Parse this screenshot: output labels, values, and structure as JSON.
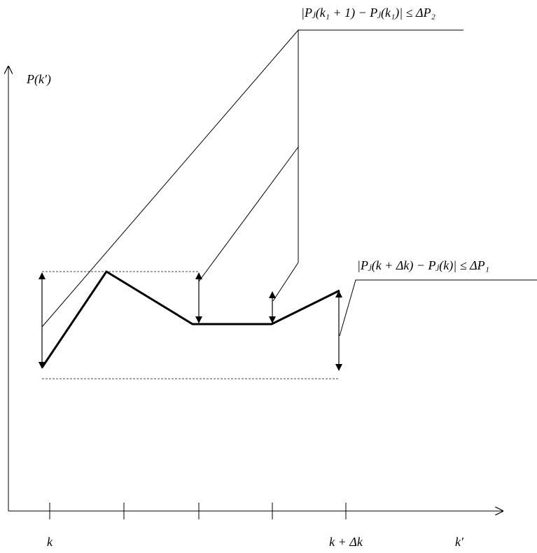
{
  "axes": {
    "y_label": "P(k′)",
    "x_label": "k′"
  },
  "x_labels": [
    "k",
    "k + Δk"
  ],
  "annotations": [
    "|Pⱼ(k₁ + 1) − Pⱼ(k₁)| ≤ ΔP₂",
    "|Pⱼ(k + Δk) − Pⱼ(k)| ≤ ΔP₁"
  ]
}
